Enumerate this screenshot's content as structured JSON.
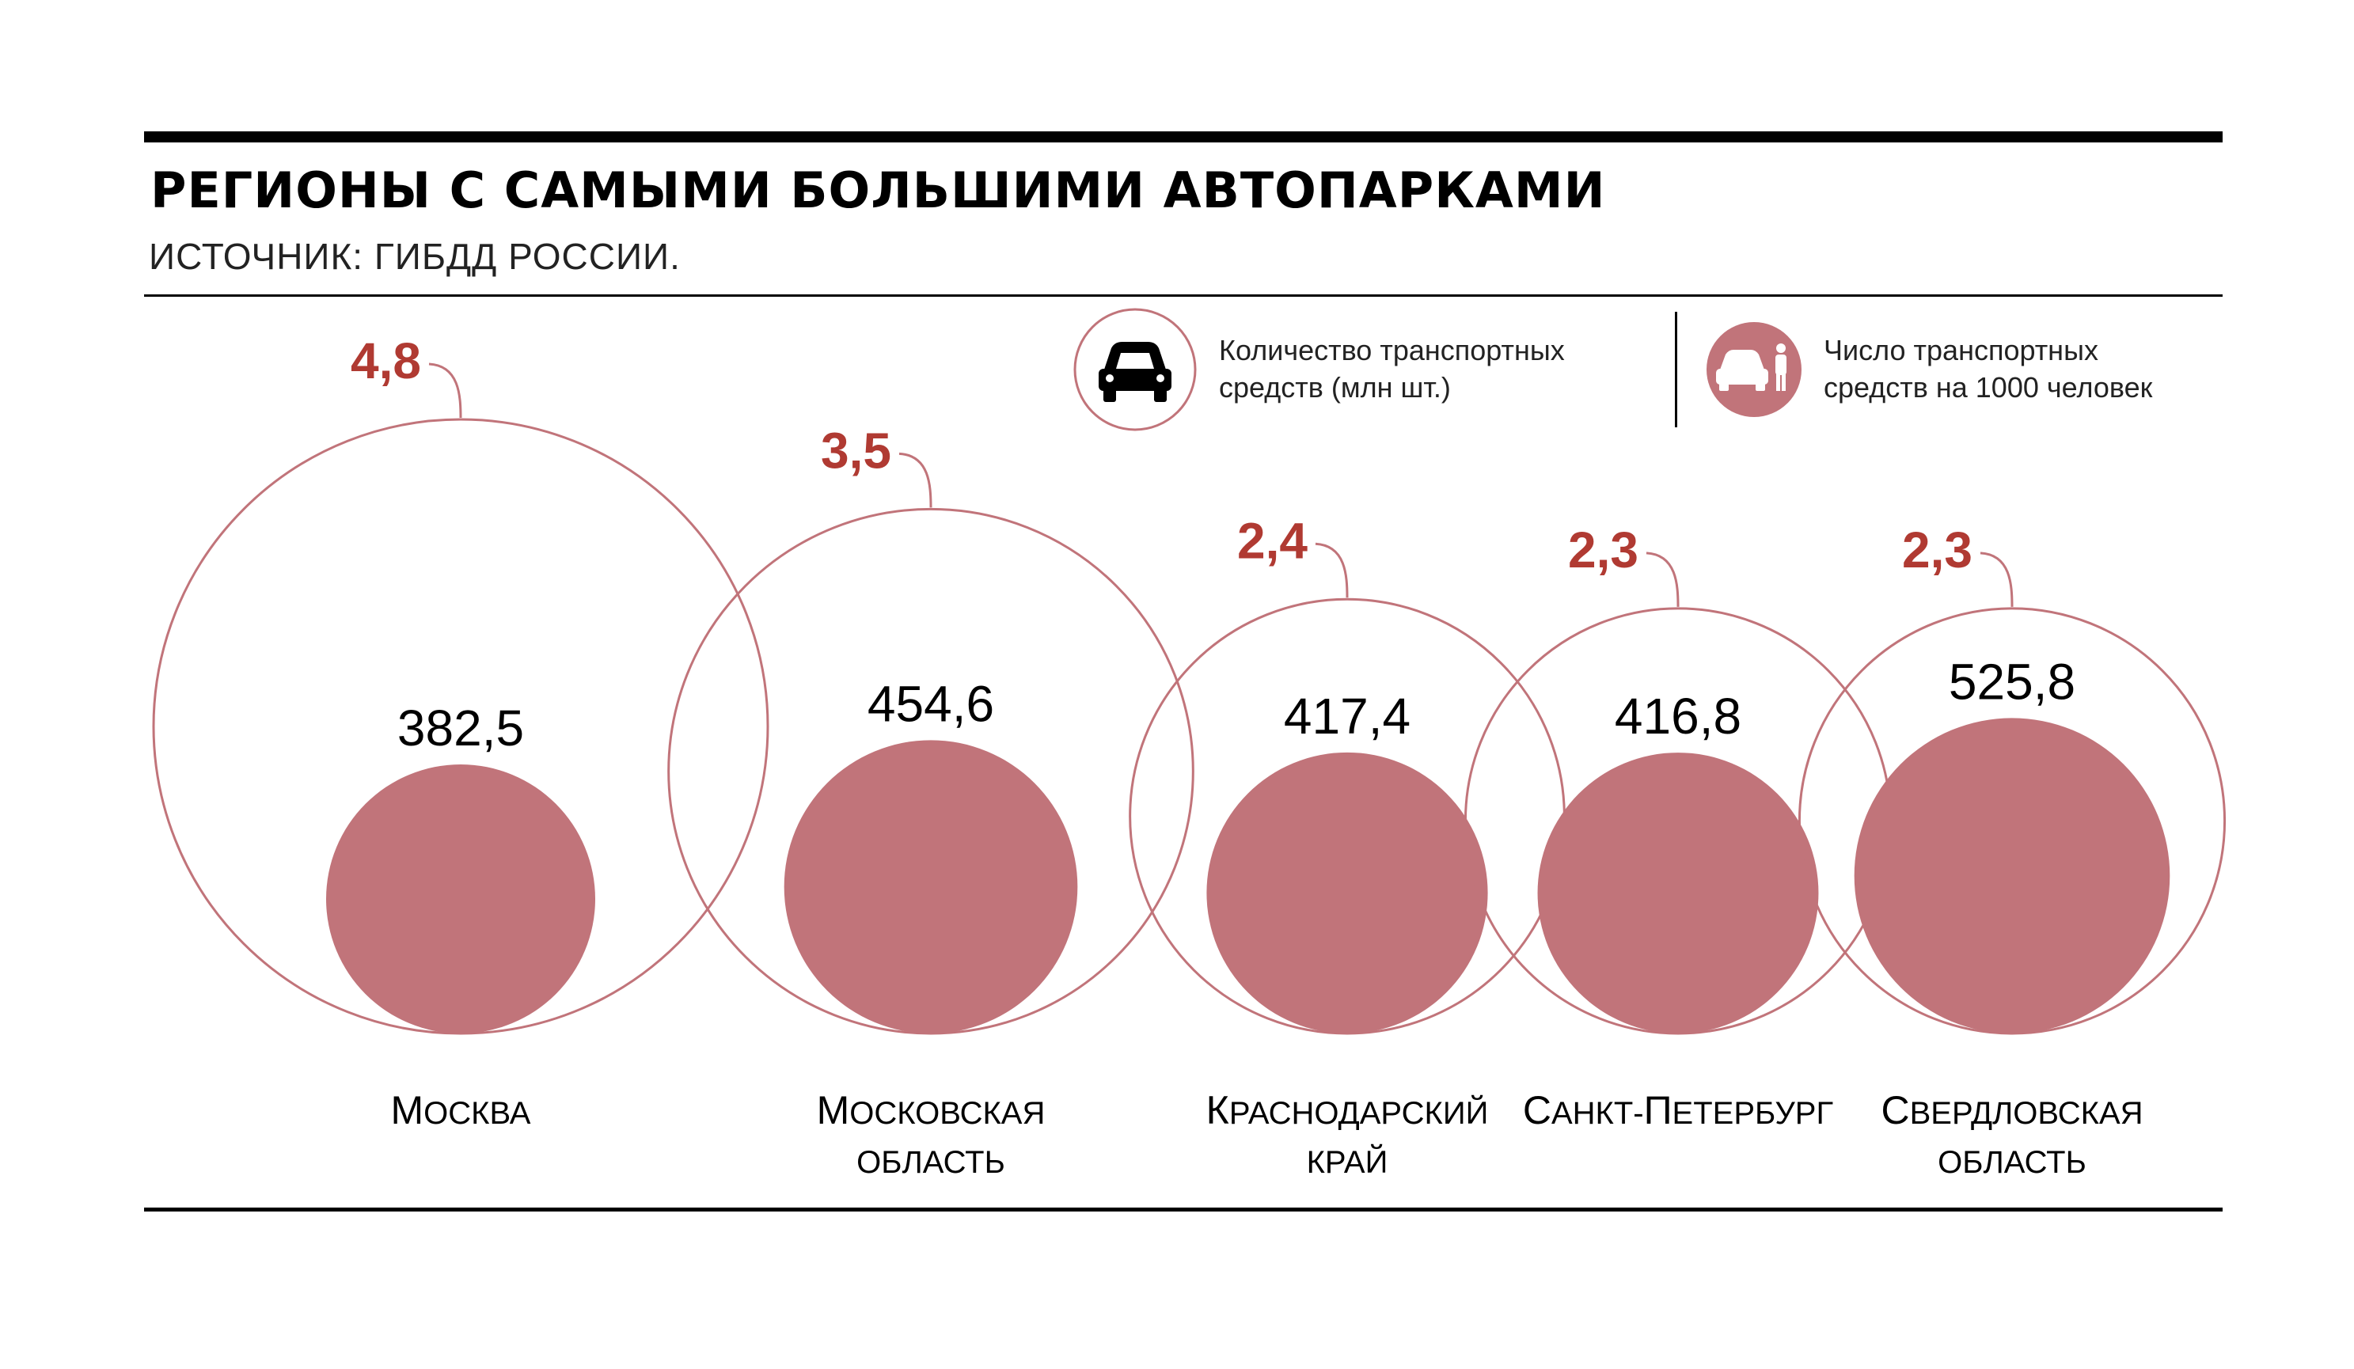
{
  "header": {
    "title": "РЕГИОНЫ С САМЫМИ БОЛЬШИМИ АВТОПАРКАМИ",
    "source": "ИСТОЧНИК: ГИБДД РОССИИ."
  },
  "legend": {
    "total": {
      "icon": "car-icon",
      "line1": "Количество транспортных",
      "line2": "средств (млн шт.)"
    },
    "per_capita": {
      "icon": "car-person-icon",
      "line1": "Число транспортных",
      "line2": "средств на 1000 человек"
    }
  },
  "colors": {
    "accent": "#b03a32",
    "fill": "#c1747a",
    "outline": "#c1747a",
    "rule": "#000000"
  },
  "chart_data": {
    "type": "bubble",
    "title": "РЕГИОНЫ С САМЫМИ БОЛЬШИМИ АВТОПАРКАМИ",
    "series": [
      {
        "name": "Количество транспортных средств (млн шт.)",
        "values": [
          4.8,
          3.5,
          2.4,
          2.3,
          2.3
        ]
      },
      {
        "name": "Число транспортных средств на 1000 человек",
        "values": [
          382.5,
          454.6,
          417.4,
          416.8,
          525.8
        ]
      }
    ],
    "categories": [
      {
        "first": "М",
        "rest": "осква",
        "line2": ""
      },
      {
        "first": "М",
        "rest": "осковская",
        "line2": "область"
      },
      {
        "first": "К",
        "rest": "раснодарский",
        "line2": "край"
      },
      {
        "first": "С",
        "rest": "анкт-",
        "first2": "П",
        "rest2": "етербург",
        "line2": ""
      },
      {
        "first": "С",
        "rest": "вердловская",
        "line2": "область"
      }
    ],
    "total_labels": [
      "4,8",
      "3,5",
      "2,4",
      "2,3",
      "2,3"
    ],
    "per_capita_labels": [
      "382,5",
      "454,6",
      "417,4",
      "416,8",
      "525,8"
    ]
  }
}
